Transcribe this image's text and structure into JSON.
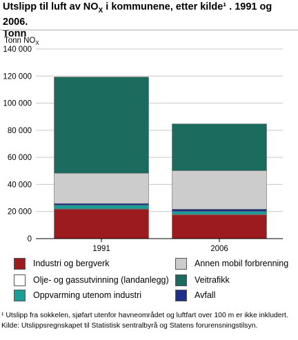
{
  "title_line1_pre": "Utslipp til luft av NO",
  "title_sub": "X",
  "title_line1_post": " i kommunene, etter kilde¹ . 1991 og 2006.",
  "title_line2": "Tonn",
  "colors": {
    "industri": "#9b1b1e",
    "olje": "#ffffff",
    "oppvarming": "#1a9e9a",
    "avfall": "#1c2f8c",
    "annen": "#cccccc",
    "veitrafikk": "#1b6b5f",
    "grid": "#c8c8c8"
  },
  "chart_data": {
    "type": "bar",
    "stacked": true,
    "ylabel_pre": "Tonn NO",
    "ylabel_sub": "X",
    "ylim": [
      0,
      140000
    ],
    "yticks": [
      "0",
      "20 000",
      "40 000",
      "60 000",
      "80 000",
      "100 000",
      "120 000",
      "140 000"
    ],
    "ytick_values": [
      0,
      20000,
      40000,
      60000,
      80000,
      100000,
      120000,
      140000
    ],
    "grid": true,
    "legend_position": "bottom",
    "categories": [
      "1991",
      "2006"
    ],
    "series": [
      {
        "key": "industri",
        "name": "Industri og bergverk",
        "values": [
          21700,
          17600
        ]
      },
      {
        "key": "olje",
        "name": "Olje- og gassutvinning (landanlegg)",
        "values": [
          300,
          400
        ]
      },
      {
        "key": "oppvarming",
        "name": "Oppvarming utenom industri",
        "values": [
          2700,
          2100
        ]
      },
      {
        "key": "avfall",
        "name": "Avfall",
        "values": [
          1200,
          1600
        ]
      },
      {
        "key": "annen",
        "name": "Annen mobil forbrenning",
        "values": [
          22400,
          28500
        ]
      },
      {
        "key": "veitrafikk",
        "name": "Veitrafikk",
        "values": [
          71000,
          34500
        ]
      }
    ]
  },
  "footnote1": "¹ Utslipp fra sokkelen, sjøfart utenfor havneområdet og luftfart over 100 m er ikke inkludert.",
  "footnote2": "Kilde: Utslippsregnskapet til Statistisk sentralbyrå og Statens forurensningstilsyn."
}
